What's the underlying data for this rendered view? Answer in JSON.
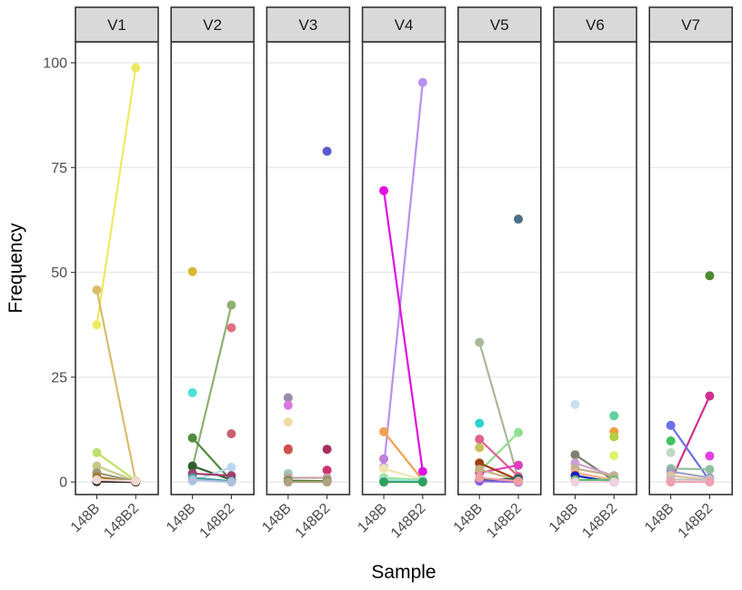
{
  "chart_data": {
    "type": "line",
    "xlabel": "Sample",
    "ylabel": "Frequency",
    "categories": [
      "148B",
      "148B2"
    ],
    "ylim": [
      -3,
      105
    ],
    "yticks": [
      0,
      25,
      50,
      75,
      100
    ],
    "grid": "horizontal",
    "legend": "none",
    "panels": [
      {
        "name": "V1",
        "series": [
          {
            "color": "#eeea60",
            "values": [
              37.5,
              98.8
            ]
          },
          {
            "color": "#d9bc6a",
            "values": [
              45.8,
              0.2
            ]
          },
          {
            "color": "#bfe06a",
            "values": [
              7.0,
              0.3
            ]
          },
          {
            "color": "#c8c888",
            "values": [
              3.8,
              0.2
            ]
          },
          {
            "color": "#9a9a7a",
            "values": [
              2.2,
              0.1
            ]
          },
          {
            "color": "#a07830",
            "values": [
              1.2,
              0.0
            ]
          },
          {
            "color": "#1a1a1a",
            "values": [
              0.1,
              0.0
            ]
          },
          {
            "color": "#f0d8d0",
            "values": [
              0.5,
              0.2
            ]
          }
        ]
      },
      {
        "name": "V2",
        "series": [
          {
            "color": "#d6b830",
            "values": [
              50.2,
              null
            ]
          },
          {
            "color": "#8fb070",
            "values": [
              3.5,
              42.2
            ]
          },
          {
            "color": "#4ee0d8",
            "values": [
              21.3,
              null
            ]
          },
          {
            "color": "#508a40",
            "values": [
              10.5,
              0.3
            ]
          },
          {
            "color": "#e07080",
            "values": [
              null,
              36.8
            ]
          },
          {
            "color": "#c86070",
            "values": [
              null,
              11.5
            ]
          },
          {
            "color": "#306030",
            "values": [
              3.8,
              0.5
            ]
          },
          {
            "color": "#b8d8f0",
            "values": [
              0.2,
              3.5
            ]
          },
          {
            "color": "#a04070",
            "values": [
              2.0,
              1.5
            ]
          },
          {
            "color": "#40a0a0",
            "values": [
              1.0,
              0.2
            ]
          },
          {
            "color": "#b0c0e0",
            "values": [
              0.5,
              0.0
            ]
          }
        ]
      },
      {
        "name": "V3",
        "series": [
          {
            "color": "#5a5ad0",
            "values": [
              null,
              78.9
            ]
          },
          {
            "color": "#9a8aa8",
            "values": [
              20.1,
              null
            ]
          },
          {
            "color": "#d878e0",
            "values": [
              18.3,
              null
            ]
          },
          {
            "color": "#f0dca0",
            "values": [
              14.3,
              null
            ]
          },
          {
            "color": "#c06040",
            "values": [
              7.7,
              null
            ]
          },
          {
            "color": "#d05050",
            "values": [
              7.9,
              null
            ]
          },
          {
            "color": "#a83060",
            "values": [
              null,
              7.8
            ]
          },
          {
            "color": "#d03070",
            "values": [
              null,
              2.8
            ]
          },
          {
            "color": "#a0c8b8",
            "values": [
              2.0,
              null
            ]
          },
          {
            "color": "#c0a0a0",
            "values": [
              1.0,
              1.0
            ]
          },
          {
            "color": "#508030",
            "values": [
              0.3,
              0.2
            ]
          },
          {
            "color": "#b0a080",
            "values": [
              0.0,
              0.0
            ]
          }
        ]
      },
      {
        "name": "V4",
        "series": [
          {
            "color": "#b890f0",
            "values": [
              3.5,
              95.3
            ]
          },
          {
            "color": "#e010e0",
            "values": [
              69.5,
              2.5
            ]
          },
          {
            "color": "#f0a050",
            "values": [
              12.0,
              0.4
            ]
          },
          {
            "color": "#c080d8",
            "values": [
              5.5,
              null
            ]
          },
          {
            "color": "#f0e4b0",
            "values": [
              3.2,
              0.5
            ]
          },
          {
            "color": "#9ae69a",
            "values": [
              1.0,
              0.5
            ]
          },
          {
            "color": "#a0e0e0",
            "values": [
              0.5,
              0.3
            ]
          },
          {
            "color": "#30a060",
            "values": [
              0.0,
              0.0
            ]
          }
        ]
      },
      {
        "name": "V5",
        "series": [
          {
            "color": "#a8b898",
            "values": [
              33.3,
              0.8
            ]
          },
          {
            "color": "#4a7088",
            "values": [
              null,
              62.7
            ]
          },
          {
            "color": "#30d0d0",
            "values": [
              14.0,
              null
            ]
          },
          {
            "color": "#90e090",
            "values": [
              2.5,
              11.8
            ]
          },
          {
            "color": "#e06090",
            "values": [
              10.2,
              1.3
            ]
          },
          {
            "color": "#e040c0",
            "values": [
              2.2,
              4.0
            ]
          },
          {
            "color": "#c8c060",
            "values": [
              8.2,
              null
            ]
          },
          {
            "color": "#a04010",
            "values": [
              4.5,
              0.5
            ]
          },
          {
            "color": "#c8b080",
            "values": [
              3.0,
              0.3
            ]
          },
          {
            "color": "#206060",
            "values": [
              0.4,
              0.8
            ]
          },
          {
            "color": "#8860e0",
            "values": [
              0.2,
              0.0
            ]
          },
          {
            "color": "#f0a0a0",
            "values": [
              1.0,
              0.2
            ]
          }
        ]
      },
      {
        "name": "V6",
        "series": [
          {
            "color": "#c8e0f0",
            "values": [
              18.5,
              null
            ]
          },
          {
            "color": "#60d0a0",
            "values": [
              null,
              15.8
            ]
          },
          {
            "color": "#f0a040",
            "values": [
              null,
              12.0
            ]
          },
          {
            "color": "#b0d040",
            "values": [
              null,
              10.8
            ]
          },
          {
            "color": "#e0f070",
            "values": [
              null,
              6.3
            ]
          },
          {
            "color": "#808070",
            "values": [
              6.5,
              0.3
            ]
          },
          {
            "color": "#d0a0d0",
            "values": [
              4.5,
              1.5
            ]
          },
          {
            "color": "#c0b090",
            "values": [
              3.2,
              1.5
            ]
          },
          {
            "color": "#f0b080",
            "values": [
              2.2,
              0.5
            ]
          },
          {
            "color": "#2020c0",
            "values": [
              1.5,
              0.0
            ]
          },
          {
            "color": "#60c070",
            "values": [
              0.5,
              0.5
            ]
          },
          {
            "color": "#f0d0e0",
            "values": [
              0.0,
              0.0
            ]
          }
        ]
      },
      {
        "name": "V7",
        "series": [
          {
            "color": "#4a8a30",
            "values": [
              null,
              49.2
            ]
          },
          {
            "color": "#d03090",
            "values": [
              0.2,
              20.5
            ]
          },
          {
            "color": "#6a70e8",
            "values": [
              13.5,
              0.3
            ]
          },
          {
            "color": "#e040e0",
            "values": [
              null,
              6.2
            ]
          },
          {
            "color": "#40c060",
            "values": [
              9.8,
              null
            ]
          },
          {
            "color": "#c0d8c0",
            "values": [
              7.0,
              null
            ]
          },
          {
            "color": "#90c0a0",
            "values": [
              3.2,
              3.0
            ]
          },
          {
            "color": "#a0a0c0",
            "values": [
              2.5,
              1.0
            ]
          },
          {
            "color": "#e0c0a0",
            "values": [
              1.5,
              0.5
            ]
          },
          {
            "color": "#c0c0c0",
            "values": [
              0.6,
              0.5
            ]
          },
          {
            "color": "#f0a0b0",
            "values": [
              0.0,
              0.0
            ]
          }
        ]
      }
    ]
  }
}
